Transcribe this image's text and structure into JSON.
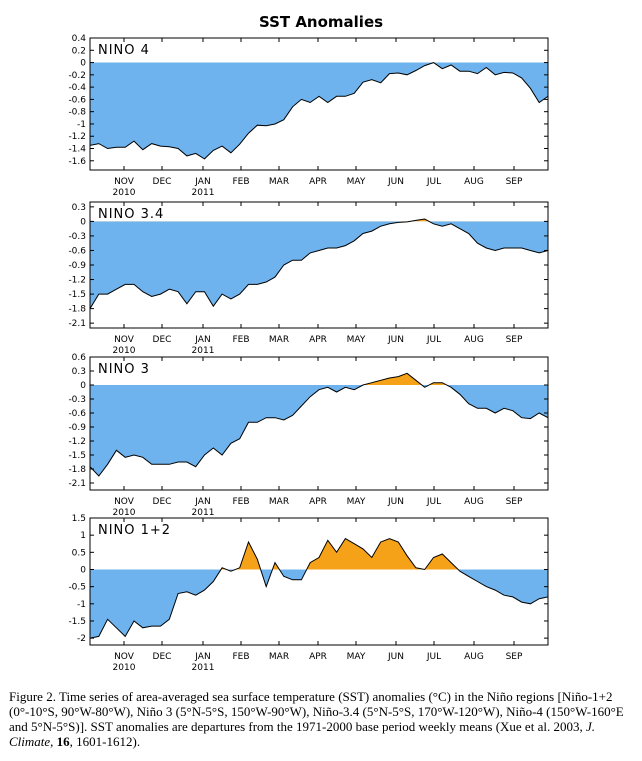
{
  "title": "SST Anomalies",
  "colors": {
    "negative": "#6fb3ee",
    "positive": "#f5a219",
    "line": "#000000"
  },
  "month_labels": [
    "NOV",
    "DEC",
    "JAN",
    "FEB",
    "MAR",
    "APR",
    "MAY",
    "JUN",
    "JUL",
    "AUG",
    "SEP"
  ],
  "year_labels": [
    {
      "text": "2010",
      "month_index": 0
    },
    {
      "text": "2011",
      "month_index": 2
    }
  ],
  "caption": {
    "p1": "Figure 2. Time series of area-averaged sea surface temperature (SST) anomalies (°C) in the Niño regions [Niño-1+2 (0°-10°S, 90°W-80°W), Niño 3 (5°N-5°S, 150°W-90°W), Niño-3.4 (5°N-5°S, 170°W-120°W), Niño-4 (150°W-160°E and 5°N-5°S)]. SST anomalies are departures from the 1971-2000 base period weekly means (Xue et al. 2003, ",
    "journal": "J. Climate",
    "p2": ", ",
    "volume": "16",
    "p3": ", 1601-1612)."
  },
  "chart_data": [
    {
      "type": "area",
      "label": "NINO 4",
      "x_unit": "weeks since start of series",
      "yticks": [
        "0.4",
        "0.2",
        "0",
        "-0.2",
        "-0.4",
        "-0.6",
        "-0.8",
        "-1",
        "-1.2",
        "-1.4",
        "-1.6"
      ],
      "ylim": [
        -1.75,
        0.4
      ],
      "values": [
        -1.35,
        -1.32,
        -1.4,
        -1.38,
        -1.38,
        -1.28,
        -1.42,
        -1.32,
        -1.36,
        -1.37,
        -1.4,
        -1.52,
        -1.48,
        -1.57,
        -1.43,
        -1.36,
        -1.47,
        -1.33,
        -1.15,
        -1.02,
        -1.03,
        -1.0,
        -0.93,
        -0.72,
        -0.6,
        -0.65,
        -0.55,
        -0.65,
        -0.55,
        -0.55,
        -0.5,
        -0.32,
        -0.28,
        -0.33,
        -0.18,
        -0.17,
        -0.2,
        -0.13,
        -0.05,
        0.0,
        -0.1,
        -0.04,
        -0.14,
        -0.14,
        -0.18,
        -0.08,
        -0.2,
        -0.16,
        -0.17,
        -0.25,
        -0.42,
        -0.65,
        -0.55
      ]
    },
    {
      "type": "area",
      "label": "NINO 3.4",
      "x_unit": "weeks since start of series",
      "yticks": [
        "0.3",
        "0",
        "-0.3",
        "-0.6",
        "-0.9",
        "-1.2",
        "-1.5",
        "-1.8",
        "-2.1"
      ],
      "ylim": [
        -2.2,
        0.4
      ],
      "values": [
        -1.8,
        -1.5,
        -1.5,
        -1.4,
        -1.3,
        -1.3,
        -1.45,
        -1.55,
        -1.5,
        -1.4,
        -1.45,
        -1.7,
        -1.45,
        -1.45,
        -1.75,
        -1.5,
        -1.6,
        -1.5,
        -1.3,
        -1.3,
        -1.25,
        -1.15,
        -0.9,
        -0.8,
        -0.8,
        -0.65,
        -0.6,
        -0.55,
        -0.55,
        -0.5,
        -0.4,
        -0.25,
        -0.2,
        -0.1,
        -0.05,
        -0.02,
        -0.01,
        0.02,
        0.05,
        -0.05,
        -0.1,
        -0.05,
        -0.15,
        -0.25,
        -0.45,
        -0.55,
        -0.6,
        -0.55,
        -0.55,
        -0.55,
        -0.6,
        -0.65,
        -0.6
      ]
    },
    {
      "type": "area",
      "label": "NINO 3",
      "x_unit": "weeks since start of series",
      "yticks": [
        "0.6",
        "0.3",
        "0",
        "-0.3",
        "-0.6",
        "-0.9",
        "-1.2",
        "-1.5",
        "-1.8",
        "-2.1"
      ],
      "ylim": [
        -2.25,
        0.6
      ],
      "values": [
        -1.75,
        -1.95,
        -1.7,
        -1.4,
        -1.55,
        -1.5,
        -1.55,
        -1.7,
        -1.7,
        -1.7,
        -1.65,
        -1.65,
        -1.75,
        -1.5,
        -1.35,
        -1.5,
        -1.25,
        -1.15,
        -0.8,
        -0.8,
        -0.7,
        -0.7,
        -0.75,
        -0.65,
        -0.45,
        -0.25,
        -0.1,
        -0.05,
        -0.15,
        -0.05,
        -0.1,
        0.0,
        0.05,
        0.1,
        0.15,
        0.18,
        0.25,
        0.1,
        -0.05,
        0.05,
        0.05,
        -0.05,
        -0.2,
        -0.4,
        -0.5,
        -0.5,
        -0.6,
        -0.5,
        -0.55,
        -0.7,
        -0.72,
        -0.6,
        -0.7
      ]
    },
    {
      "type": "area",
      "label": "NINO 1+2",
      "x_unit": "weeks since start of series",
      "yticks": [
        "1.5",
        "1",
        "0.5",
        "0",
        "-0.5",
        "-1",
        "-1.5",
        "-2"
      ],
      "ylim": [
        -2.2,
        1.5
      ],
      "values": [
        -2.0,
        -1.95,
        -1.45,
        -1.7,
        -1.95,
        -1.5,
        -1.7,
        -1.65,
        -1.65,
        -1.45,
        -0.7,
        -0.65,
        -0.75,
        -0.6,
        -0.35,
        0.05,
        -0.05,
        0.05,
        0.8,
        0.3,
        -0.5,
        0.2,
        -0.2,
        -0.3,
        -0.3,
        0.2,
        0.35,
        0.85,
        0.5,
        0.9,
        0.75,
        0.6,
        0.35,
        0.8,
        0.9,
        0.8,
        0.4,
        0.05,
        0.0,
        0.35,
        0.45,
        0.2,
        -0.05,
        -0.2,
        -0.35,
        -0.5,
        -0.6,
        -0.75,
        -0.8,
        -0.95,
        -1.0,
        -0.85,
        -0.8
      ]
    }
  ]
}
